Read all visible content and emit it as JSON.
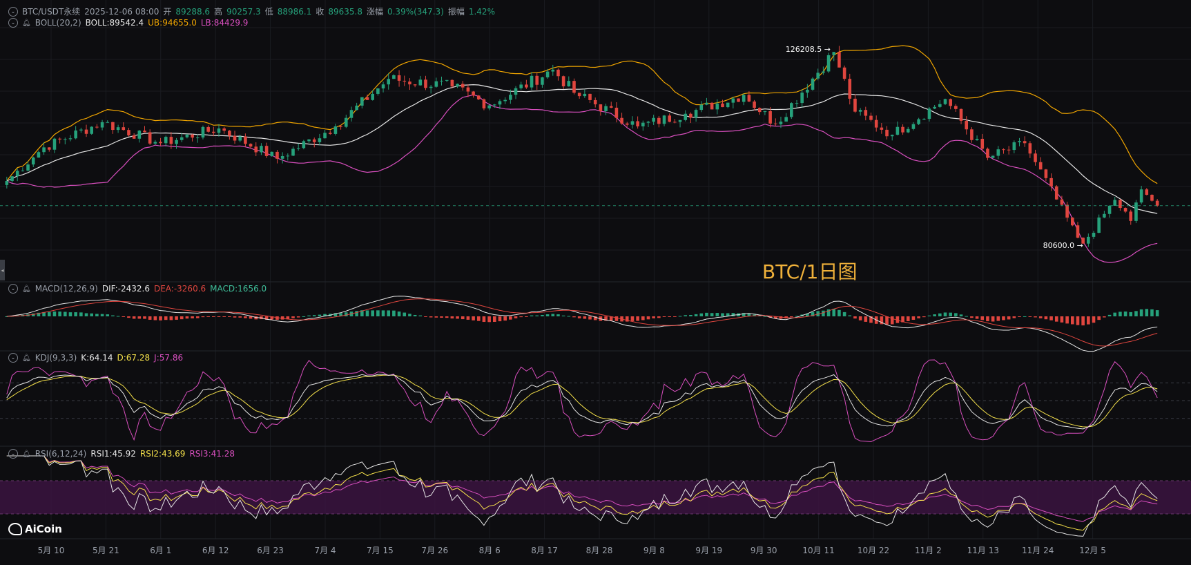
{
  "header": {
    "symbol": "BTC/USDT永续",
    "datetime": "2025-12-06 08:00",
    "open_label": "开",
    "open": "89288.6",
    "high_label": "高",
    "high": "90257.3",
    "low_label": "低",
    "low": "88986.1",
    "close_label": "收",
    "close": "89635.8",
    "change_label": "涨幅",
    "change": "0.39%(347.3)",
    "amp_label": "振幅",
    "amp": "1.42%"
  },
  "boll": {
    "name": "BOLL(20,2)",
    "mid": "BOLL:89542.4",
    "ub": "UB:94655.0",
    "lb": "LB:84429.9"
  },
  "macd": {
    "name": "MACD(12,26,9)",
    "dif": "DIF:-2432.6",
    "dea": "DEA:-3260.6",
    "macd": "MACD:1656.0"
  },
  "kdj": {
    "name": "KDJ(9,3,3)",
    "k": "K:64.14",
    "d": "D:67.28",
    "j": "J:57.86"
  },
  "rsi": {
    "name": "RSI(6,12,24)",
    "r1": "RSI1:45.92",
    "r2": "RSI2:43.69",
    "r3": "RSI3:41.28"
  },
  "annotations": {
    "high_mark": "126208.5",
    "low_mark": "80600.0"
  },
  "watermark": "BTC/1日图",
  "logo": "AiCoin",
  "colors": {
    "up": "#26a17b",
    "down": "#e0463f",
    "mid": "#e6e6e6",
    "ub": "#f0a500",
    "lb": "#d94fbf",
    "k": "#e6e6e6",
    "d": "#f5e14a",
    "j": "#d94fbf",
    "background": "#0d0d10"
  },
  "chart_data": {
    "type": "candlestick",
    "x_ticks": [
      "5月 10",
      "5月 21",
      "6月 1",
      "6月 12",
      "6月 23",
      "7月 4",
      "7月 15",
      "7月 26",
      "8月 6",
      "8月 17",
      "8月 28",
      "9月 8",
      "9月 19",
      "9月 30",
      "10月 11",
      "10月 22",
      "11月 2",
      "11月 13",
      "11月 24",
      "12月 5"
    ],
    "x_start": "2025-05-03",
    "x_end": "2025-12-06",
    "current_price": 89635.8,
    "price_keypoints": [
      [
        "2025-05-03",
        95500
      ],
      [
        "2025-05-10",
        103500
      ],
      [
        "2025-05-21",
        109500
      ],
      [
        "2025-06-01",
        104500
      ],
      [
        "2025-06-12",
        108000
      ],
      [
        "2025-06-23",
        100800
      ],
      [
        "2025-07-04",
        108500
      ],
      [
        "2025-07-14",
        119800
      ],
      [
        "2025-07-26",
        118000
      ],
      [
        "2025-08-02",
        113500
      ],
      [
        "2025-08-14",
        122000
      ],
      [
        "2025-08-18",
        116500
      ],
      [
        "2025-08-30",
        108500
      ],
      [
        "2025-09-08",
        111500
      ],
      [
        "2025-09-19",
        116000
      ],
      [
        "2025-09-25",
        109000
      ],
      [
        "2025-10-06",
        126208.5
      ],
      [
        "2025-10-10",
        112000
      ],
      [
        "2025-10-17",
        106500
      ],
      [
        "2025-10-27",
        115000
      ],
      [
        "2025-11-04",
        101000
      ],
      [
        "2025-11-11",
        104500
      ],
      [
        "2025-11-21",
        82000
      ],
      [
        "2025-11-22",
        80600
      ],
      [
        "2025-11-28",
        91000
      ],
      [
        "2025-12-01",
        86000
      ],
      [
        "2025-12-03",
        93500
      ],
      [
        "2025-12-06",
        89635.8
      ]
    ]
  }
}
